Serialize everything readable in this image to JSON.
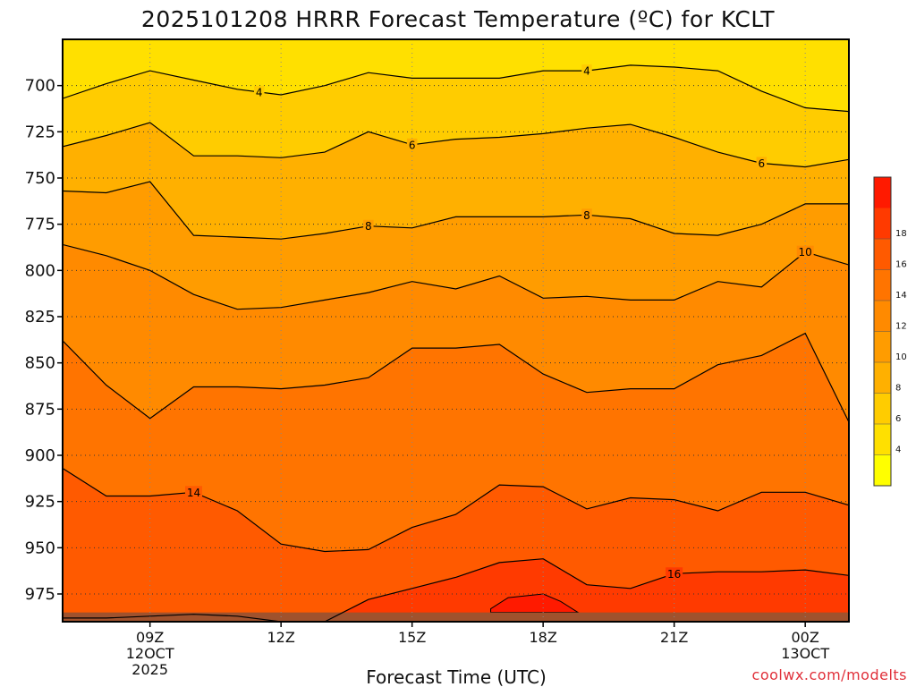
{
  "chart_data": {
    "type": "heatmap",
    "title": "2025101208 HRRR Forecast Temperature (ºC) for KCLT",
    "xlabel": "Forecast Time (UTC)",
    "ylabel": "",
    "y_axis": {
      "ticks": [
        700,
        725,
        750,
        775,
        800,
        825,
        850,
        875,
        900,
        925,
        950,
        975
      ],
      "range_hpa": [
        675,
        990
      ],
      "reversed": true
    },
    "x_axis": {
      "range_hours": [
        7,
        25
      ],
      "ticks": [
        {
          "hour": 9,
          "label": "09Z",
          "sub1": "12OCT",
          "sub2": "2025"
        },
        {
          "hour": 12,
          "label": "12Z",
          "sub1": "",
          "sub2": ""
        },
        {
          "hour": 15,
          "label": "15Z",
          "sub1": "",
          "sub2": ""
        },
        {
          "hour": 18,
          "label": "18Z",
          "sub1": "",
          "sub2": ""
        },
        {
          "hour": 21,
          "label": "21Z",
          "sub1": "",
          "sub2": ""
        },
        {
          "hour": 24,
          "label": "00Z",
          "sub1": "13OCT",
          "sub2": ""
        }
      ]
    },
    "hours": [
      7,
      8,
      9,
      10,
      11,
      12,
      13,
      14,
      15,
      16,
      17,
      18,
      19,
      20,
      21,
      22,
      23,
      24,
      25
    ],
    "isotherms": [
      {
        "level": 4,
        "label_hours": [
          11.5,
          19
        ],
        "hpa": [
          707,
          699,
          692,
          697,
          702,
          705,
          700,
          693,
          696,
          696,
          696,
          692,
          692,
          689,
          690,
          692,
          703,
          712,
          714
        ]
      },
      {
        "level": 6,
        "label_hours": [
          15,
          23
        ],
        "hpa": [
          733,
          727,
          720,
          738,
          738,
          739,
          736,
          725,
          732,
          729,
          728,
          726,
          723,
          721,
          728,
          736,
          742,
          744,
          740
        ]
      },
      {
        "level": 8,
        "label_hours": [
          14,
          19
        ],
        "hpa": [
          757,
          758,
          752,
          781,
          782,
          783,
          780,
          776,
          777,
          771,
          771,
          771,
          770,
          772,
          780,
          781,
          775,
          764,
          764
        ]
      },
      {
        "level": 10,
        "label_hours": [
          24
        ],
        "hpa": [
          786,
          792,
          800,
          813,
          821,
          820,
          816,
          812,
          806,
          810,
          803,
          815,
          814,
          816,
          816,
          806,
          809,
          790,
          797
        ]
      },
      {
        "level": 12,
        "label_hours": [],
        "hpa": [
          838,
          862,
          880,
          863,
          863,
          864,
          862,
          858,
          842,
          842,
          840,
          856,
          866,
          864,
          864,
          851,
          846,
          834,
          882
        ]
      },
      {
        "level": 14,
        "label_hours": [
          10
        ],
        "hpa": [
          907,
          922,
          922,
          920,
          930,
          948,
          952,
          951,
          939,
          932,
          916,
          917,
          929,
          923,
          924,
          930,
          920,
          920,
          927
        ]
      },
      {
        "level": 16,
        "label_hours": [
          21
        ],
        "hpa": [
          988,
          988,
          987,
          986,
          987,
          990,
          990,
          978,
          972,
          966,
          958,
          956,
          970,
          972,
          964,
          963,
          963,
          962,
          965
        ]
      }
    ],
    "color_scale": {
      "min": 2,
      "max": 20,
      "step": 2,
      "tick_labels": [
        4,
        6,
        8,
        10,
        12,
        14,
        16,
        18
      ],
      "colors": [
        "#ffff00",
        "#ffe000",
        "#ffcc00",
        "#ffb000",
        "#ff9c00",
        "#ff8a00",
        "#ff7400",
        "#ff5a00",
        "#ff3a00",
        "#ff1a00"
      ]
    },
    "ground_color": "#a0522d"
  },
  "credit": "coolwx.com/modelts"
}
